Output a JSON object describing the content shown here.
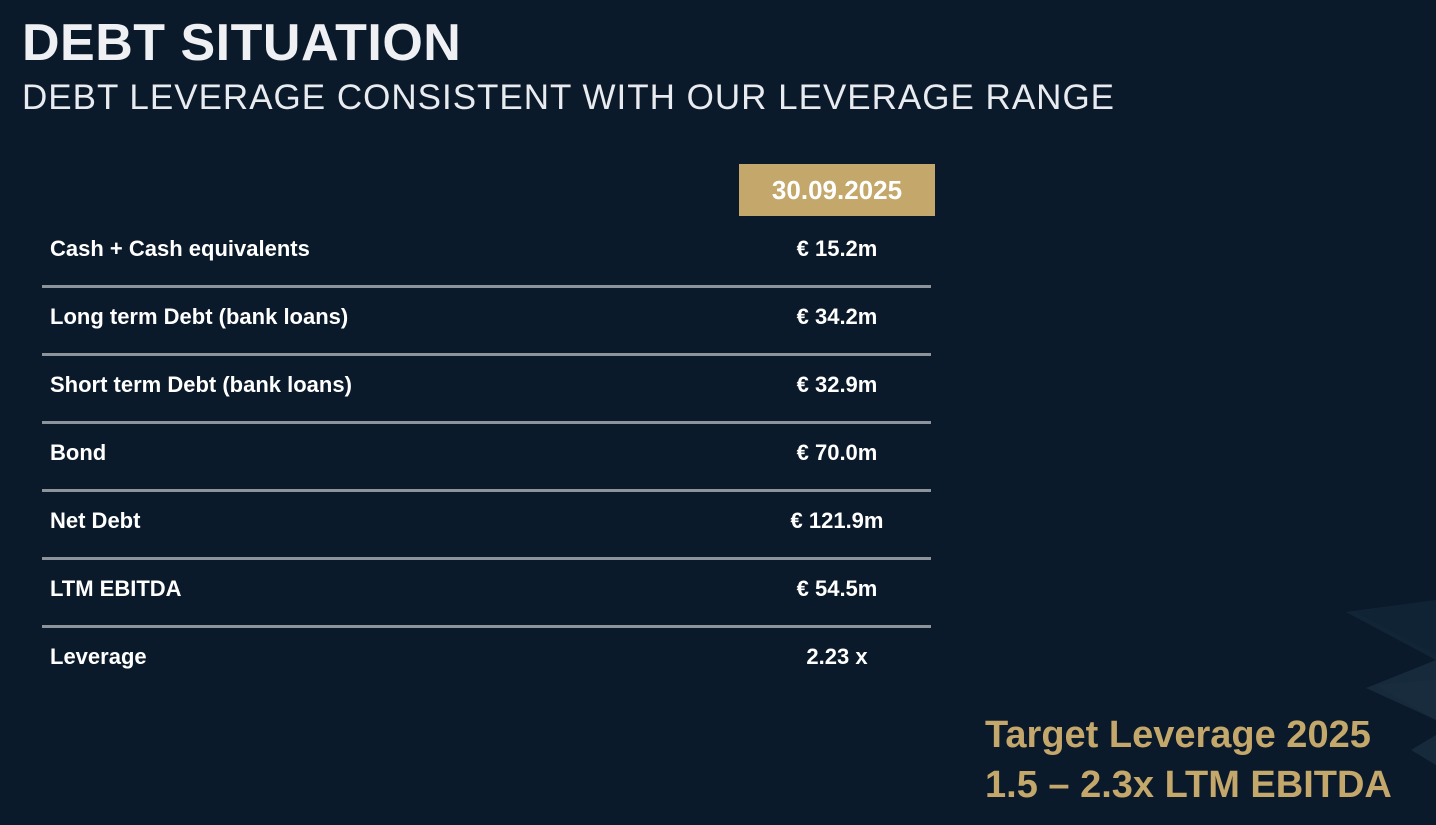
{
  "header": {
    "title": "DEBT SITUATION",
    "subtitle": "DEBT LEVERAGE CONSISTENT WITH OUR LEVERAGE RANGE"
  },
  "table": {
    "column_header": "30.09.2025",
    "rows": [
      {
        "label": "Cash + Cash equivalents",
        "value": "€ 15.2m"
      },
      {
        "label": "Long term Debt (bank loans)",
        "value": "€ 34.2m"
      },
      {
        "label": "Short term Debt (bank loans)",
        "value": "€ 32.9m"
      },
      {
        "label": "Bond",
        "value": "€ 70.0m"
      },
      {
        "label": "Net Debt",
        "value": "€ 121.9m"
      },
      {
        "label": "LTM EBITDA",
        "value": "€ 54.5m"
      },
      {
        "label": "Leverage",
        "value": "2.23 x"
      }
    ]
  },
  "target": {
    "line1": "Target Leverage 2025",
    "line2": "1.5 – 2.3x LTM EBITDA"
  },
  "colors": {
    "background": "#0b1a2a",
    "accent_gold": "#c4a76a",
    "divider": "#8c939b"
  }
}
